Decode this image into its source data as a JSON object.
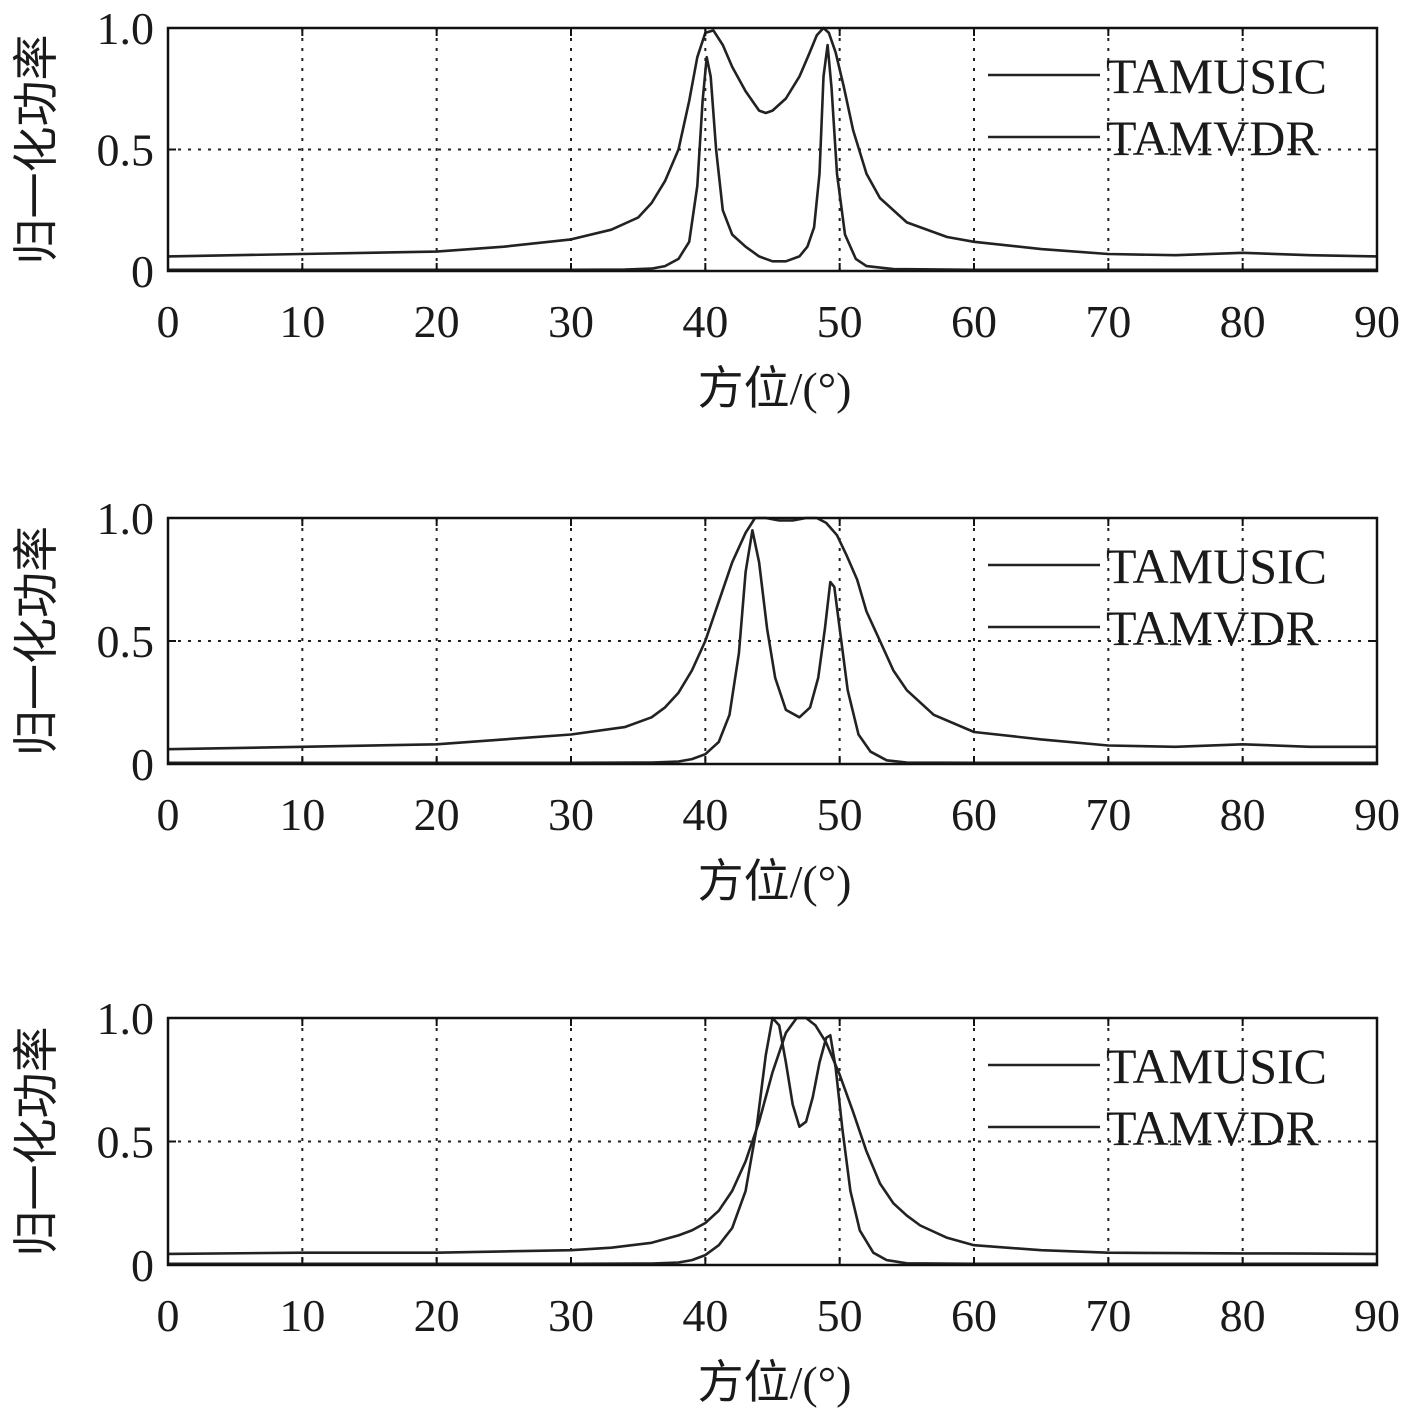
{
  "chart_data": [
    {
      "type": "line",
      "title": "",
      "xlabel": "方位/(°)",
      "ylabel": "归一化功率",
      "xlim": [
        0,
        90
      ],
      "ylim": [
        0,
        1.0
      ],
      "x_ticks": [
        "0",
        "10",
        "20",
        "30",
        "40",
        "50",
        "60",
        "70",
        "80",
        "90"
      ],
      "y_ticks": [
        "0",
        "0.5",
        "1.0"
      ],
      "grid": true,
      "legend": "top-right",
      "series": [
        {
          "name": "TAMUSIC",
          "x": [
            0,
            10,
            20,
            30,
            34,
            36,
            37,
            38,
            38.8,
            39.4,
            39.8,
            40.1,
            40.4,
            40.8,
            41.3,
            42,
            43,
            44,
            45,
            46,
            47,
            47.6,
            48.1,
            48.5,
            48.8,
            49.1,
            49.4,
            49.8,
            50.4,
            51.2,
            52,
            54,
            60,
            70,
            80,
            90
          ],
          "y": [
            0.005,
            0.005,
            0.005,
            0.005,
            0.006,
            0.01,
            0.02,
            0.05,
            0.12,
            0.35,
            0.7,
            0.88,
            0.8,
            0.5,
            0.25,
            0.15,
            0.1,
            0.06,
            0.04,
            0.04,
            0.06,
            0.1,
            0.18,
            0.4,
            0.8,
            0.93,
            0.75,
            0.4,
            0.15,
            0.05,
            0.02,
            0.008,
            0.005,
            0.005,
            0.005,
            0.005
          ]
        },
        {
          "name": "TAMVDR",
          "x": [
            0,
            10,
            20,
            25,
            30,
            33,
            35,
            36,
            37,
            38,
            38.8,
            39.4,
            40,
            40.6,
            41.3,
            42,
            43,
            44,
            44.5,
            45,
            46,
            47,
            47.7,
            48.3,
            48.8,
            49.2,
            49.7,
            50.3,
            51,
            52,
            53,
            55,
            58,
            60,
            65,
            70,
            75,
            80,
            85,
            90
          ],
          "y": [
            0.06,
            0.07,
            0.08,
            0.1,
            0.13,
            0.17,
            0.22,
            0.28,
            0.37,
            0.5,
            0.7,
            0.88,
            0.98,
            0.99,
            0.93,
            0.84,
            0.74,
            0.66,
            0.65,
            0.66,
            0.71,
            0.8,
            0.89,
            0.97,
            1.0,
            0.98,
            0.9,
            0.76,
            0.58,
            0.4,
            0.3,
            0.2,
            0.14,
            0.12,
            0.09,
            0.07,
            0.065,
            0.075,
            0.065,
            0.06
          ]
        }
      ]
    },
    {
      "type": "line",
      "title": "",
      "xlabel": "方位/(°)",
      "ylabel": "归一化功率",
      "xlim": [
        0,
        90
      ],
      "ylim": [
        0,
        1.0
      ],
      "x_ticks": [
        "0",
        "10",
        "20",
        "30",
        "40",
        "50",
        "60",
        "70",
        "80",
        "90"
      ],
      "y_ticks": [
        "0",
        "0.5",
        "1.0"
      ],
      "grid": true,
      "legend": "top-right",
      "series": [
        {
          "name": "TAMUSIC",
          "x": [
            0,
            10,
            20,
            30,
            36,
            38,
            39,
            40,
            41,
            41.8,
            42.5,
            43,
            43.5,
            44,
            44.6,
            45.2,
            46,
            47,
            47.8,
            48.4,
            48.9,
            49.3,
            49.6,
            50,
            50.6,
            51.4,
            52.3,
            53.5,
            55,
            60,
            70,
            80,
            90
          ],
          "y": [
            0.005,
            0.005,
            0.005,
            0.005,
            0.006,
            0.01,
            0.02,
            0.04,
            0.09,
            0.2,
            0.45,
            0.78,
            0.95,
            0.82,
            0.55,
            0.35,
            0.22,
            0.19,
            0.23,
            0.35,
            0.55,
            0.74,
            0.72,
            0.55,
            0.3,
            0.12,
            0.05,
            0.015,
            0.006,
            0.005,
            0.005,
            0.005,
            0.005
          ]
        },
        {
          "name": "TAMVDR",
          "x": [
            0,
            10,
            20,
            25,
            30,
            34,
            36,
            37,
            38,
            39,
            40,
            41,
            42,
            43,
            43.7,
            44.5,
            45.5,
            46.5,
            47.5,
            48.3,
            49,
            49.8,
            50.5,
            51.3,
            52,
            53,
            54,
            55,
            57,
            60,
            65,
            70,
            75,
            80,
            85,
            90
          ],
          "y": [
            0.06,
            0.07,
            0.08,
            0.1,
            0.12,
            0.15,
            0.19,
            0.23,
            0.29,
            0.38,
            0.5,
            0.66,
            0.82,
            0.94,
            1.0,
            1.0,
            0.99,
            0.99,
            1.0,
            1.0,
            0.98,
            0.93,
            0.85,
            0.75,
            0.62,
            0.5,
            0.38,
            0.3,
            0.2,
            0.13,
            0.1,
            0.075,
            0.07,
            0.08,
            0.07,
            0.07
          ]
        }
      ]
    },
    {
      "type": "line",
      "title": "",
      "xlabel": "方位/(°)",
      "ylabel": "归一化功率",
      "xlim": [
        0,
        90
      ],
      "ylim": [
        0,
        1.0
      ],
      "x_ticks": [
        "0",
        "10",
        "20",
        "30",
        "40",
        "50",
        "60",
        "70",
        "80",
        "90"
      ],
      "y_ticks": [
        "0",
        "0.5",
        "1.0"
      ],
      "grid": true,
      "legend": "top-right",
      "series": [
        {
          "name": "TAMUSIC",
          "x": [
            0,
            10,
            20,
            30,
            36,
            38,
            39,
            40,
            41,
            42,
            43,
            43.8,
            44.5,
            45,
            45.5,
            46,
            46.5,
            47,
            47.5,
            48,
            48.5,
            49,
            49.3,
            49.7,
            50.2,
            50.8,
            51.5,
            52.5,
            53.5,
            55,
            60,
            70,
            80,
            90
          ],
          "y": [
            0.005,
            0.005,
            0.005,
            0.005,
            0.006,
            0.01,
            0.02,
            0.04,
            0.08,
            0.15,
            0.3,
            0.55,
            0.85,
            1.0,
            0.97,
            0.82,
            0.65,
            0.56,
            0.58,
            0.68,
            0.82,
            0.92,
            0.93,
            0.8,
            0.55,
            0.3,
            0.14,
            0.05,
            0.02,
            0.007,
            0.005,
            0.005,
            0.005,
            0.005
          ]
        },
        {
          "name": "TAMVDR",
          "x": [
            0,
            10,
            20,
            25,
            30,
            33,
            36,
            38,
            39,
            40,
            41,
            42,
            43,
            44,
            45,
            46,
            46.8,
            47.5,
            48.2,
            49,
            50,
            51,
            52,
            53,
            54,
            55,
            56,
            58,
            60,
            65,
            70,
            75,
            80,
            85,
            90
          ],
          "y": [
            0.045,
            0.05,
            0.05,
            0.055,
            0.06,
            0.07,
            0.09,
            0.12,
            0.14,
            0.17,
            0.22,
            0.3,
            0.42,
            0.58,
            0.78,
            0.94,
            1.0,
            1.0,
            0.97,
            0.9,
            0.77,
            0.62,
            0.46,
            0.33,
            0.25,
            0.2,
            0.16,
            0.11,
            0.08,
            0.06,
            0.05,
            0.048,
            0.047,
            0.046,
            0.045
          ]
        }
      ]
    }
  ]
}
